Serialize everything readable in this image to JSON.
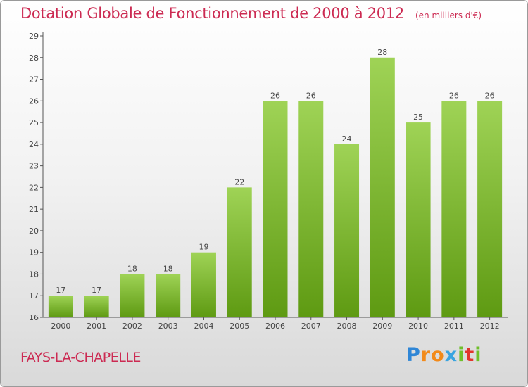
{
  "title": "Dotation Globale de Fonctionnement de 2000 à 2012",
  "unit_label": "(en milliers d'€)",
  "commune": "FAYS-LA-CHAPELLE",
  "brand": {
    "letters": [
      "P",
      "r",
      "o",
      "x",
      "i",
      "t",
      "i"
    ],
    "colors": [
      "#2f86d6",
      "#f28a1a",
      "#f28a1a",
      "#3aa4e0",
      "#6fbf2a",
      "#e2342c",
      "#6fbf2a"
    ]
  },
  "colors": {
    "title": "#cc2a52",
    "bar_light": "#9fd356",
    "bar_dark": "#5e9a12",
    "axis": "#555555"
  },
  "chart_data": {
    "type": "bar",
    "categories": [
      "2000",
      "2001",
      "2002",
      "2003",
      "2004",
      "2005",
      "2006",
      "2007",
      "2008",
      "2009",
      "2010",
      "2011",
      "2012"
    ],
    "values": [
      17,
      17,
      18,
      18,
      19,
      22,
      26,
      26,
      24,
      28,
      25,
      26,
      26
    ],
    "data_labels": [
      "17",
      "17",
      "18",
      "18",
      "19",
      "22",
      "26",
      "26",
      "24",
      "28",
      "25",
      "26",
      "26"
    ],
    "yticks": [
      "16",
      "17",
      "18",
      "19",
      "20",
      "21",
      "22",
      "23",
      "24",
      "25",
      "26",
      "27",
      "28",
      "29"
    ],
    "ylim": [
      16,
      29
    ],
    "grid": false
  }
}
